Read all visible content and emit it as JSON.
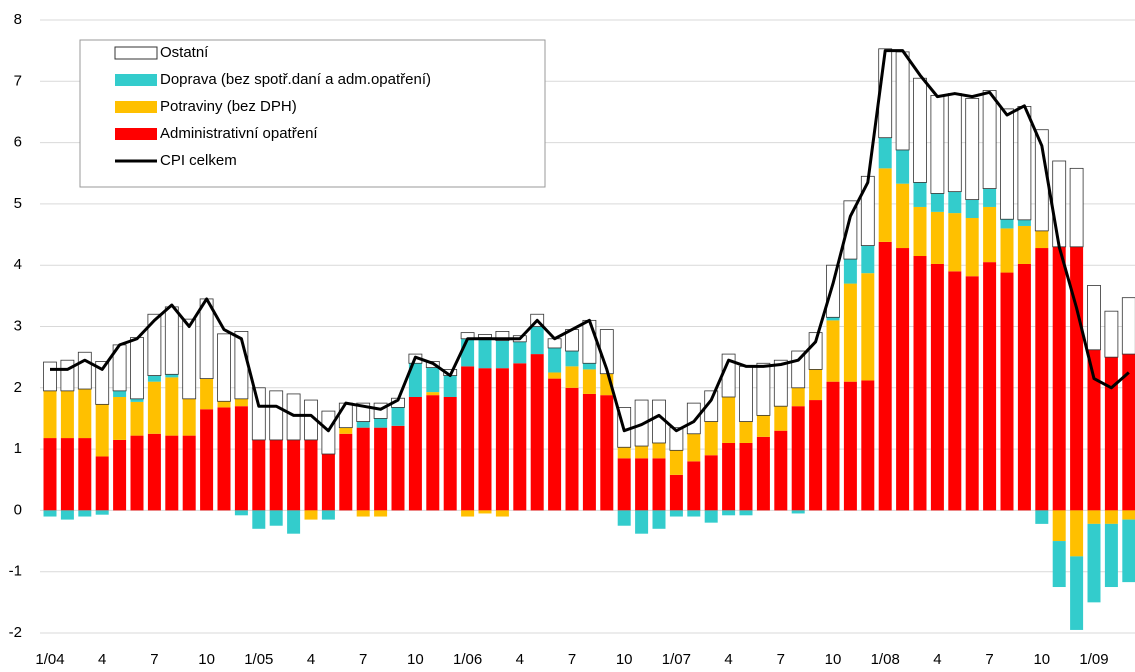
{
  "chart_data": {
    "type": "bar",
    "stacked": true,
    "categories": [
      "1/04",
      null,
      null,
      "4",
      null,
      null,
      "7",
      null,
      null,
      "10",
      null,
      null,
      "1/05",
      null,
      null,
      "4",
      null,
      null,
      "7",
      null,
      null,
      "10",
      null,
      null,
      "1/06",
      null,
      null,
      "4",
      null,
      null,
      "7",
      null,
      null,
      "10",
      null,
      null,
      "1/07",
      null,
      null,
      "4",
      null,
      null,
      "7",
      null,
      null,
      "10",
      null,
      null,
      "1/08",
      null,
      null,
      "4",
      null,
      null,
      "7",
      null,
      null,
      "10",
      null,
      null,
      "1/09",
      null,
      null
    ],
    "series": [
      {
        "name": "Ostatní",
        "color": "#ffffff",
        "values": [
          0.47,
          0.5,
          0.6,
          0.7,
          0.75,
          1.0,
          1.0,
          1.1,
          1.3,
          1.3,
          1.1,
          1.1,
          0.85,
          0.8,
          0.75,
          0.65,
          0.7,
          0.4,
          0.3,
          0.25,
          0.15,
          0.15,
          0.1,
          0.1,
          0.1,
          0.05,
          0.15,
          0.1,
          0.2,
          0.15,
          0.35,
          0.7,
          0.72,
          0.65,
          0.75,
          0.7,
          0.37,
          0.5,
          0.5,
          0.7,
          0.9,
          0.85,
          0.75,
          0.6,
          0.6,
          0.85,
          0.95,
          1.13,
          1.45,
          1.6,
          1.7,
          1.6,
          1.6,
          1.65,
          1.6,
          1.8,
          1.85,
          1.65,
          1.4,
          1.28,
          1.05,
          0.75,
          0.92
        ]
      },
      {
        "name": "Doprava (bez spotř.daní a adm.opatření)",
        "color": "#33cccc",
        "values": [
          -0.1,
          -0.15,
          -0.1,
          -0.07,
          0.1,
          0.05,
          0.1,
          0.05,
          0,
          0,
          0,
          -0.08,
          -0.3,
          -0.25,
          -0.38,
          0,
          -0.15,
          0,
          0.1,
          0.15,
          0.3,
          0.55,
          0.4,
          0.35,
          0.45,
          0.5,
          0.45,
          0.35,
          0.45,
          0.4,
          0.25,
          0.1,
          0,
          -0.25,
          -0.38,
          -0.3,
          -0.1,
          -0.1,
          -0.2,
          -0.08,
          -0.08,
          0,
          0,
          -0.05,
          0,
          0.05,
          0.4,
          0.45,
          0.5,
          0.55,
          0.4,
          0.3,
          0.35,
          0.3,
          0.3,
          0.15,
          0.1,
          -0.22,
          -0.75,
          -1.2,
          -1.28,
          -1.03,
          -1.02
        ]
      },
      {
        "name": "Potraviny (bez DPH)",
        "color": "#ffc000",
        "values": [
          0.77,
          0.77,
          0.8,
          0.85,
          0.7,
          0.55,
          0.85,
          0.95,
          0.6,
          0.5,
          0.1,
          0.12,
          0,
          0,
          0,
          -0.15,
          0,
          0.1,
          -0.1,
          -0.1,
          0,
          0,
          0.05,
          0,
          -0.1,
          -0.05,
          -0.1,
          0,
          0,
          0.1,
          0.35,
          0.4,
          0.35,
          0.18,
          0.2,
          0.25,
          0.4,
          0.45,
          0.55,
          0.75,
          0.35,
          0.35,
          0.4,
          0.3,
          0.5,
          1.0,
          1.6,
          1.75,
          1.2,
          1.05,
          0.8,
          0.85,
          0.95,
          0.95,
          0.9,
          0.72,
          0.62,
          0.28,
          -0.5,
          -0.75,
          -0.22,
          -0.22,
          -0.15
        ]
      },
      {
        "name": "Administrativní opatření",
        "color": "#ff0000",
        "values": [
          1.18,
          1.18,
          1.18,
          0.88,
          1.15,
          1.22,
          1.25,
          1.22,
          1.22,
          1.65,
          1.68,
          1.7,
          1.15,
          1.15,
          1.15,
          1.15,
          0.92,
          1.25,
          1.35,
          1.35,
          1.38,
          1.85,
          1.88,
          1.85,
          2.35,
          2.32,
          2.32,
          2.4,
          2.55,
          2.15,
          2.0,
          1.9,
          1.88,
          0.85,
          0.85,
          0.85,
          0.58,
          0.8,
          0.9,
          1.1,
          1.1,
          1.2,
          1.3,
          1.7,
          1.8,
          2.1,
          2.1,
          2.12,
          4.38,
          4.28,
          4.15,
          4.02,
          3.9,
          3.82,
          4.05,
          3.88,
          4.02,
          4.28,
          4.3,
          4.3,
          2.62,
          2.5,
          2.55
        ]
      },
      {
        "name": "CPI celkem",
        "type": "line",
        "color": "#000000",
        "values": [
          2.3,
          2.3,
          2.45,
          2.3,
          2.7,
          2.8,
          3.1,
          3.35,
          3.0,
          3.45,
          2.95,
          2.8,
          1.7,
          1.7,
          1.55,
          1.55,
          1.3,
          1.75,
          1.7,
          1.65,
          1.8,
          2.5,
          2.4,
          2.2,
          2.8,
          2.8,
          2.8,
          2.8,
          3.1,
          2.8,
          2.95,
          3.1,
          2.3,
          1.3,
          1.4,
          1.55,
          1.3,
          1.45,
          1.8,
          2.45,
          2.35,
          2.35,
          2.38,
          2.45,
          2.75,
          3.7,
          4.8,
          5.35,
          7.5,
          7.5,
          7.1,
          6.75,
          6.8,
          6.75,
          6.82,
          6.45,
          6.6,
          5.95,
          4.3,
          3.3,
          2.15,
          2.0,
          2.25
        ]
      }
    ],
    "ylim": [
      -2,
      8
    ],
    "yticks": [
      -2,
      -1,
      0,
      1,
      2,
      3,
      4,
      5,
      6,
      7,
      8
    ],
    "grid": true,
    "legend": "upper left"
  }
}
